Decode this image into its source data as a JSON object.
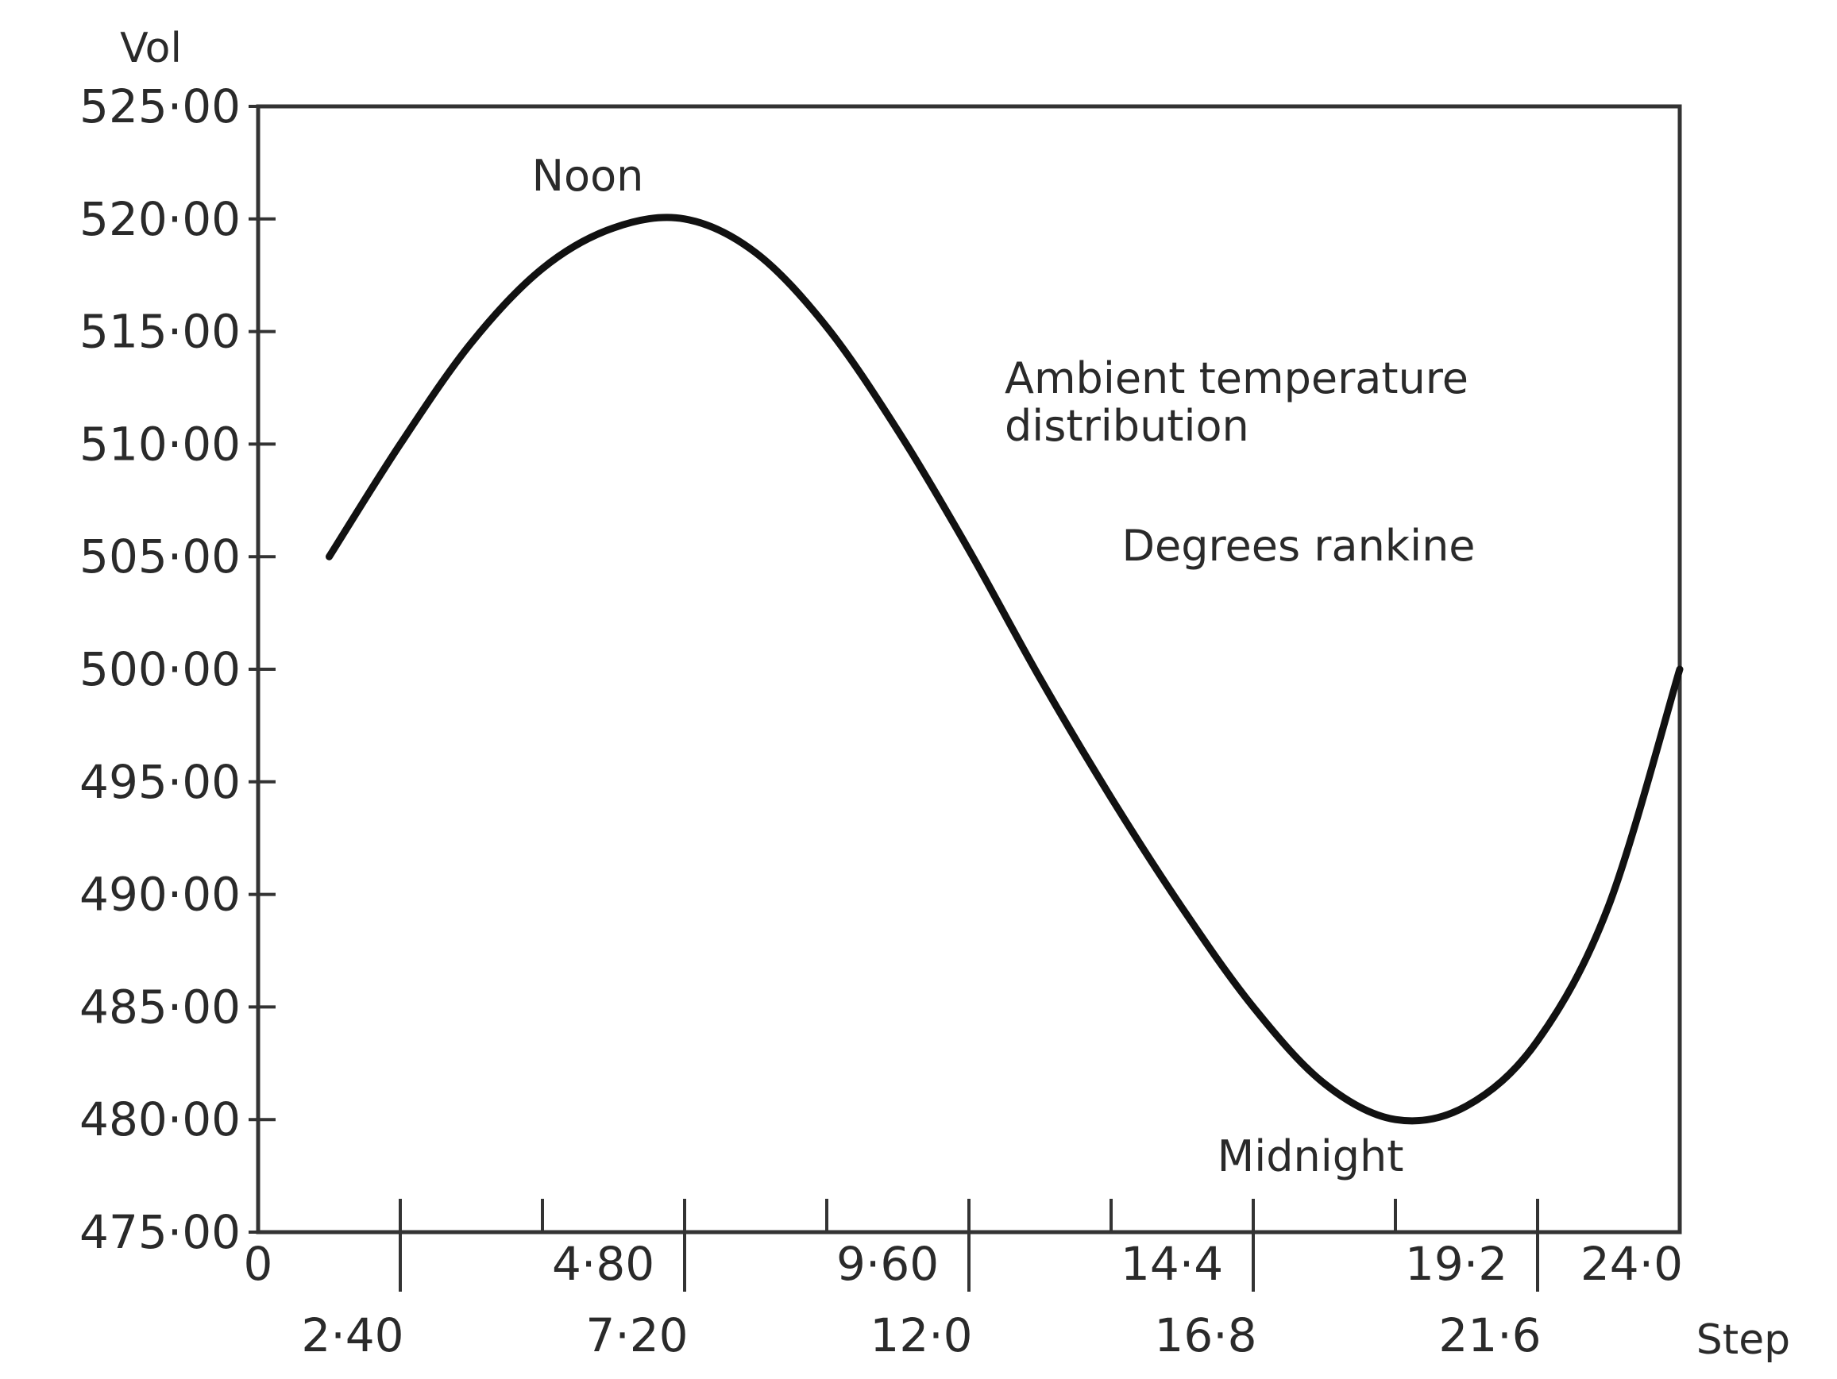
{
  "chart_data": {
    "type": "line",
    "ylabel": "Vol",
    "xlabel": "Step",
    "ylim": [
      475,
      525
    ],
    "xlim": [
      0,
      24
    ],
    "y_ticks": [
      "525·00",
      "520·00",
      "515·00",
      "510·00",
      "505·00",
      "500·00",
      "495·00",
      "490·00",
      "485·00",
      "480·00",
      "475·00"
    ],
    "x_ticks_upper": [
      "0",
      "4·80",
      "9·60",
      "14·4",
      "19·2",
      "24·0"
    ],
    "x_ticks_lower": [
      "2·40",
      "7·20",
      "12·0",
      "16·8",
      "21·6"
    ],
    "series": [
      {
        "x": [
          1.2,
          2.4,
          3.6,
          4.8,
          6.0,
          7.2,
          8.4,
          9.6,
          10.8,
          12.0,
          13.2,
          14.4,
          15.6,
          16.8,
          18.0,
          19.2,
          20.4,
          21.6,
          22.8,
          24.0
        ],
        "y": [
          505.0,
          510.0,
          514.5,
          517.8,
          519.6,
          520.0,
          518.5,
          515.2,
          510.6,
          505.3,
          499.6,
          494.3,
          489.4,
          485.0,
          481.6,
          480.0,
          480.6,
          483.5,
          489.5,
          500.0
        ]
      }
    ],
    "annotations": {
      "peak": "Noon",
      "trough": "Midnight",
      "description_line1": "Ambient temperature",
      "description_line2": "distribution",
      "units": "Degrees rankine"
    },
    "grid": false
  }
}
